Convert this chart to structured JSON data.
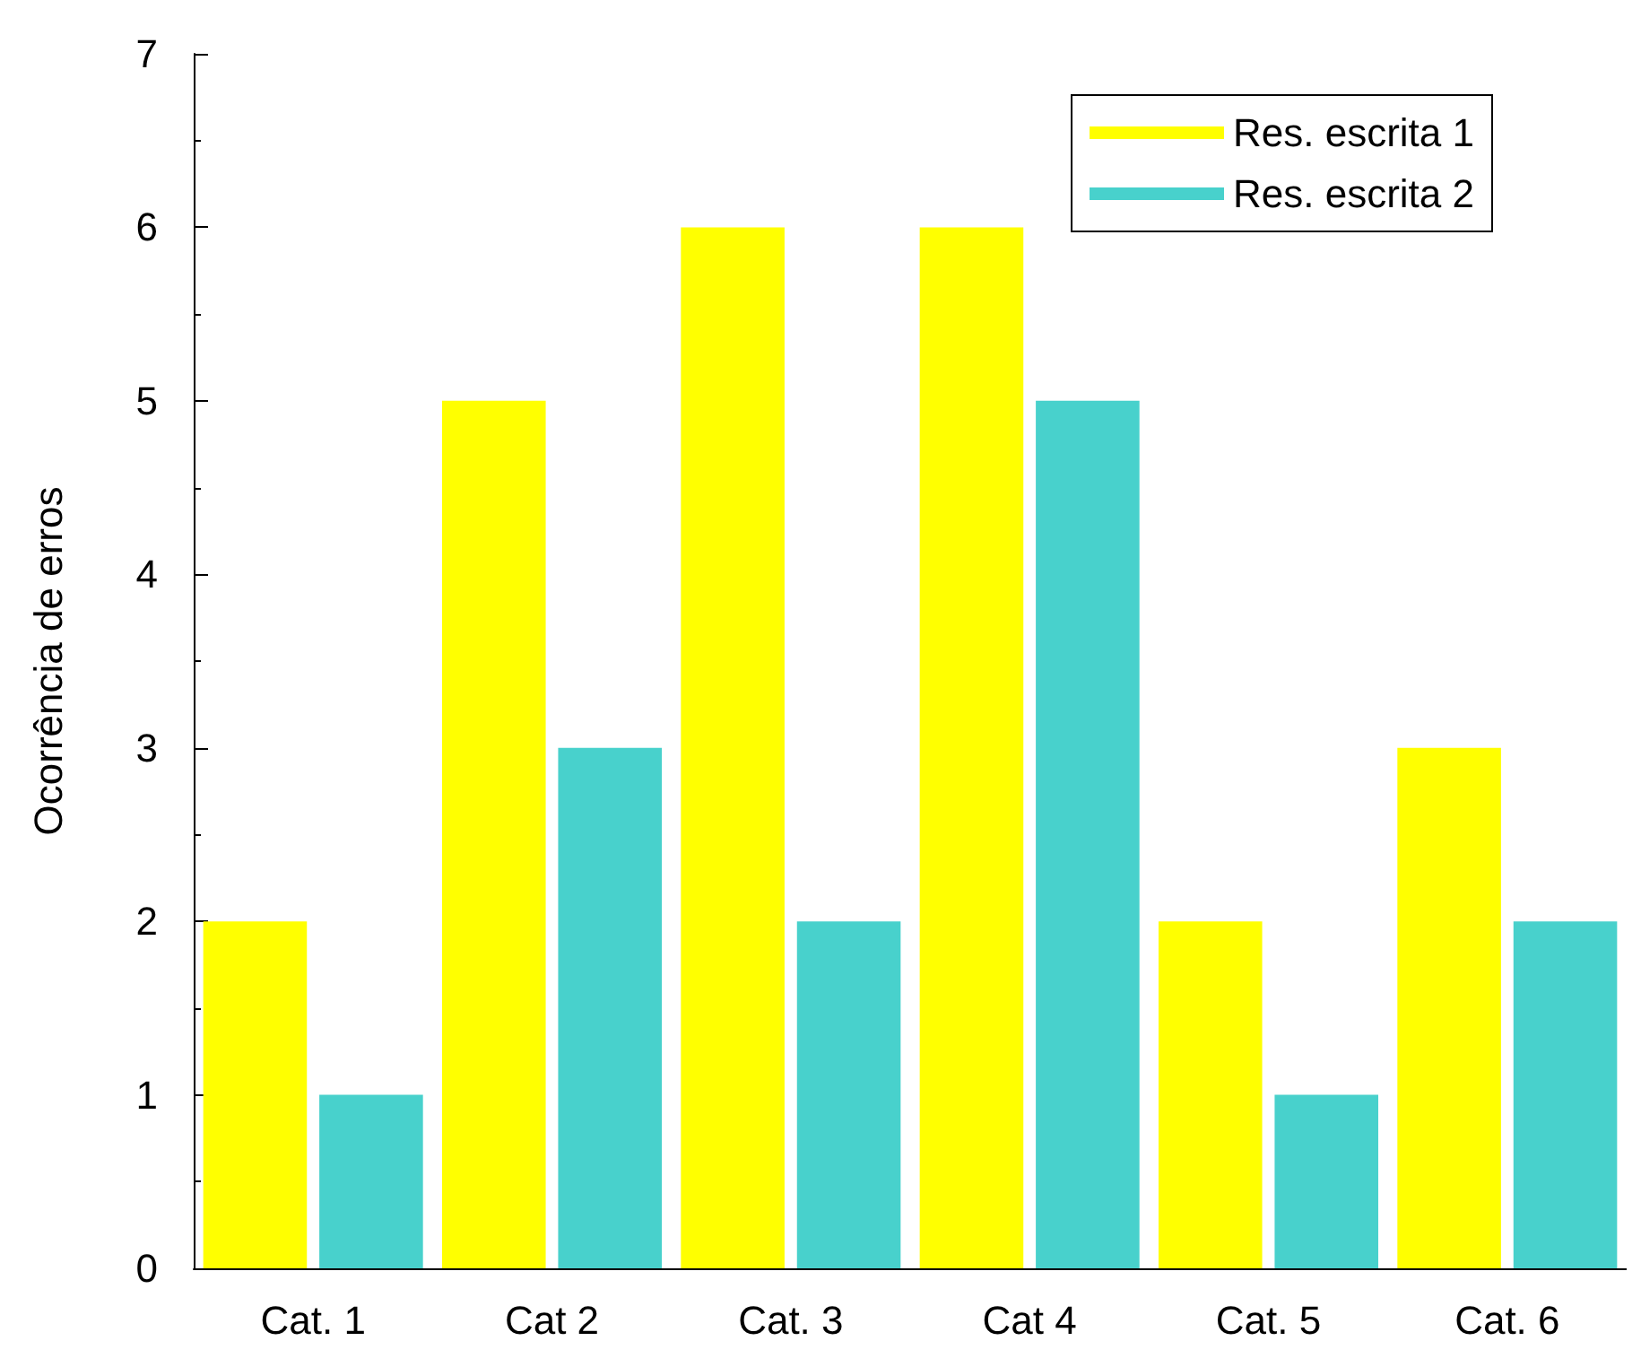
{
  "chart_data": {
    "type": "bar",
    "ylabel": "Ocorrência de erros",
    "categories": [
      "Cat. 1",
      "Cat 2",
      "Cat. 3",
      "Cat 4",
      "Cat. 5",
      "Cat. 6"
    ],
    "series": [
      {
        "name": "Res. escrita 1",
        "color": "#ffff00",
        "values": [
          2,
          5,
          6,
          6,
          2,
          3
        ]
      },
      {
        "name": "Res. escrita 2",
        "color": "#48d1cc",
        "values": [
          1,
          3,
          2,
          5,
          1,
          2
        ]
      }
    ],
    "ylim": [
      0,
      7
    ],
    "yticks": [
      0,
      1,
      2,
      3,
      4,
      5,
      6,
      7
    ],
    "grid": false,
    "legend": "top right"
  }
}
